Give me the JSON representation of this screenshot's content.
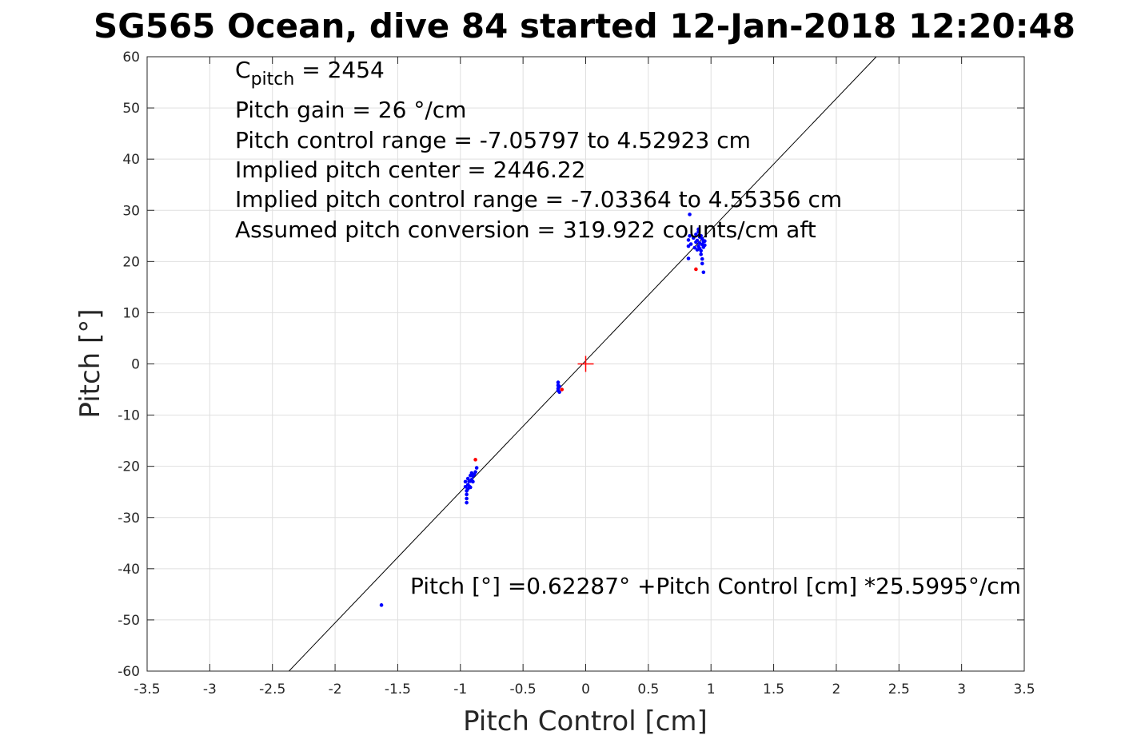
{
  "chart_data": {
    "type": "scatter",
    "title": "SG565 Ocean, dive 84 started 12-Jan-2018 12:20:48",
    "xlabel": "Pitch Control [cm]",
    "ylabel": "Pitch [°]",
    "xlim": [
      -3.5,
      3.5
    ],
    "ylim": [
      -60,
      60
    ],
    "xticks": [
      -3.5,
      -3,
      -2.5,
      -2,
      -1.5,
      -1,
      -0.5,
      0,
      0.5,
      1,
      1.5,
      2,
      2.5,
      3,
      3.5
    ],
    "xtick_labels": [
      "-3.5",
      "-3",
      "-2.5",
      "-2",
      "-1.5",
      "-1",
      "-0.5",
      "0",
      "0.5",
      "1",
      "1.5",
      "2",
      "2.5",
      "3",
      "3.5"
    ],
    "yticks": [
      -60,
      -50,
      -40,
      -30,
      -20,
      -10,
      0,
      10,
      20,
      30,
      40,
      50,
      60
    ],
    "ytick_labels": [
      "-60",
      "-50",
      "-40",
      "-30",
      "-20",
      "-10",
      "0",
      "10",
      "20",
      "30",
      "40",
      "50",
      "60"
    ],
    "grid": true,
    "annotations": {
      "c_pitch_symbol": "C",
      "c_pitch_subscript": "pitch",
      "c_pitch_value": " = 2454",
      "lines": [
        "Pitch gain = 26 °/cm",
        "Pitch control range = -7.05797 to 4.52923 cm",
        "Implied pitch center = 2446.22",
        "Implied pitch control range = -7.03364 to 4.55356 cm",
        "Assumed pitch conversion = 319.922 counts/cm aft"
      ],
      "fit_equation": "Pitch [°] =0.62287° +Pitch Control [cm] *25.5995°/cm"
    },
    "fit_line": {
      "intercept": 0.62287,
      "slope": 25.5995,
      "color": "#000000"
    },
    "center_marker": {
      "x": 0,
      "y": 0,
      "color": "#ff0000"
    },
    "series": [
      {
        "color": "#0000ff",
        "points": [
          [
            0.83,
            29.2
          ],
          [
            0.82,
            20.6
          ],
          [
            0.82,
            23.0
          ],
          [
            0.82,
            24.2
          ],
          [
            0.83,
            25.0
          ],
          [
            0.84,
            23.4
          ],
          [
            0.86,
            24.6
          ],
          [
            0.87,
            22.7
          ],
          [
            0.88,
            23.8
          ],
          [
            0.88,
            25.3
          ],
          [
            0.89,
            22.3
          ],
          [
            0.89,
            24.1
          ],
          [
            0.9,
            23.0
          ],
          [
            0.9,
            25.8
          ],
          [
            0.9,
            26.3
          ],
          [
            0.91,
            22.5
          ],
          [
            0.91,
            24.8
          ],
          [
            0.91,
            23.6
          ],
          [
            0.92,
            22.1
          ],
          [
            0.92,
            25.0
          ],
          [
            0.92,
            21.4
          ],
          [
            0.93,
            23.3
          ],
          [
            0.93,
            24.4
          ],
          [
            0.93,
            20.5
          ],
          [
            0.93,
            19.6
          ],
          [
            0.94,
            23.9
          ],
          [
            0.94,
            22.8
          ],
          [
            0.94,
            17.9
          ],
          [
            0.95,
            23.2
          ],
          [
            0.95,
            24.0
          ],
          [
            -0.22,
            -3.6
          ],
          [
            -0.22,
            -4.2
          ],
          [
            -0.22,
            -4.8
          ],
          [
            -0.22,
            -5.2
          ],
          [
            -0.21,
            -5.5
          ],
          [
            -0.21,
            -4.4
          ],
          [
            -0.96,
            -23.0
          ],
          [
            -0.96,
            -24.0
          ],
          [
            -0.95,
            -24.8
          ],
          [
            -0.95,
            -25.5
          ],
          [
            -0.95,
            -26.3
          ],
          [
            -0.95,
            -27.1
          ],
          [
            -0.94,
            -22.4
          ],
          [
            -0.94,
            -23.6
          ],
          [
            -0.94,
            -24.4
          ],
          [
            -0.93,
            -22.9
          ],
          [
            -0.93,
            -23.9
          ],
          [
            -0.92,
            -21.8
          ],
          [
            -0.92,
            -22.9
          ],
          [
            -0.92,
            -24.1
          ],
          [
            -0.91,
            -21.3
          ],
          [
            -0.91,
            -22.6
          ],
          [
            -0.9,
            -21.9
          ],
          [
            -0.9,
            -23.0
          ],
          [
            -0.89,
            -21.6
          ],
          [
            -0.88,
            -21.1
          ],
          [
            -0.87,
            -20.3
          ],
          [
            -1.63,
            -47.1
          ]
        ]
      },
      {
        "color": "#ff0000",
        "points": [
          [
            0.88,
            18.5
          ],
          [
            -0.88,
            -18.7
          ],
          [
            -0.19,
            -5.0
          ]
        ]
      }
    ]
  }
}
